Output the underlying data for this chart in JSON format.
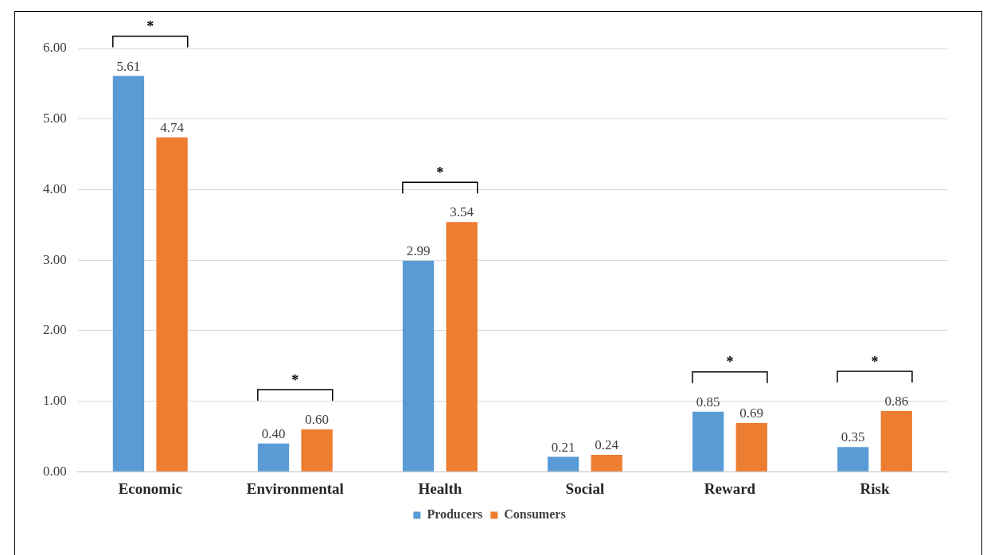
{
  "chart_data": {
    "type": "bar",
    "categories": [
      "Economic",
      "Environmental",
      "Health",
      "Social",
      "Reward",
      "Risk"
    ],
    "series": [
      {
        "name": "Producers",
        "color": "#5b9bd5",
        "values": [
          5.61,
          0.4,
          2.99,
          0.21,
          0.85,
          0.35
        ],
        "value_labels": [
          "5.61",
          "0.40",
          "2.99",
          "0.21",
          "0.85",
          "0.35"
        ]
      },
      {
        "name": "Consumers",
        "color": "#ed7d31",
        "values": [
          4.74,
          0.6,
          3.54,
          0.24,
          0.69,
          0.86
        ],
        "value_labels": [
          "4.74",
          "0.60",
          "3.54",
          "0.24",
          "0.69",
          "0.86"
        ]
      }
    ],
    "ylim": [
      0,
      6
    ],
    "yticks": [
      {
        "value": 0,
        "label": "0.00"
      },
      {
        "value": 1,
        "label": "1.00"
      },
      {
        "value": 2,
        "label": "2.00"
      },
      {
        "value": 3,
        "label": "3.00"
      },
      {
        "value": 4,
        "label": "4.00"
      },
      {
        "value": 5,
        "label": "5.00"
      },
      {
        "value": 6,
        "label": "6.00"
      }
    ],
    "grid": "y",
    "legend": "bottom",
    "annotations": [
      "*",
      "*",
      "*",
      "*",
      "*"
    ]
  }
}
